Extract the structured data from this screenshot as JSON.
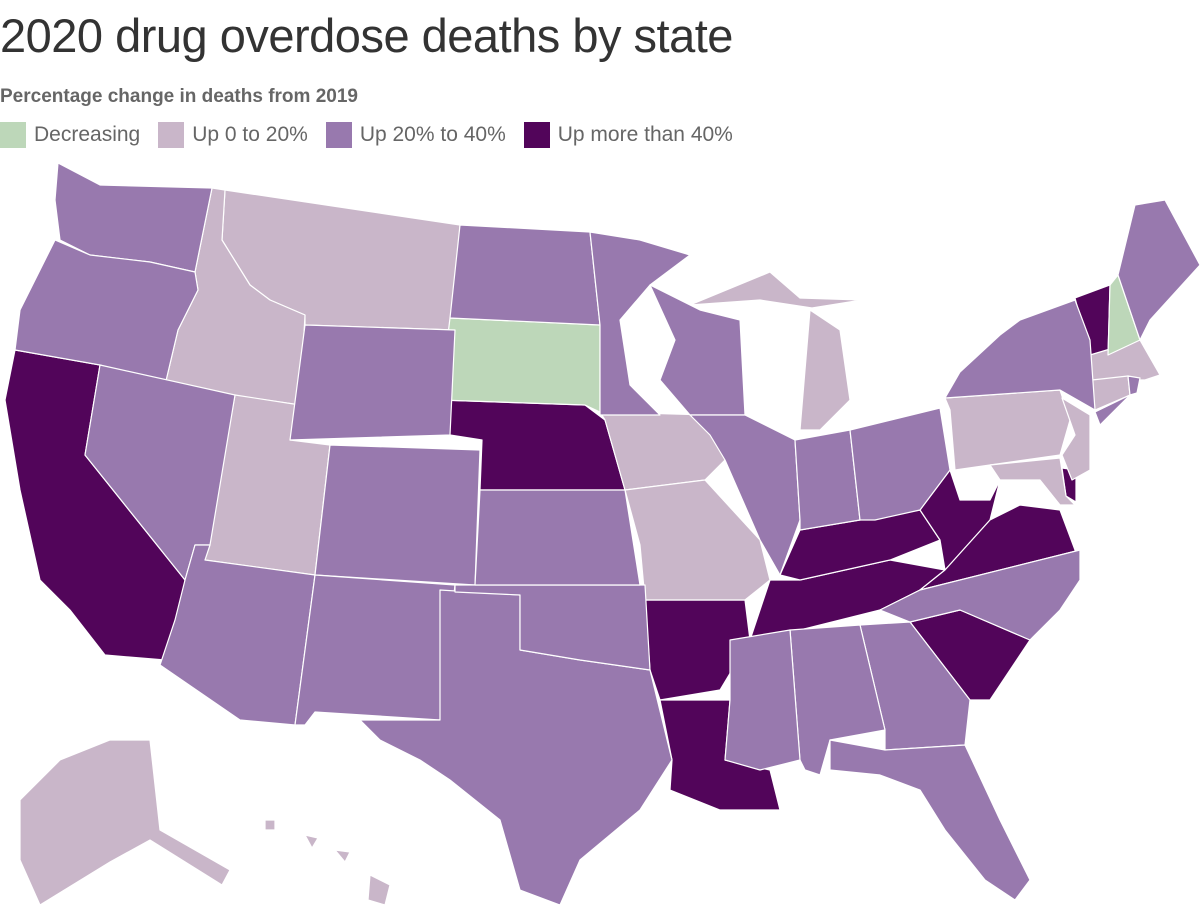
{
  "title": "2020 drug overdose deaths by state",
  "subtitle": "Percentage change in deaths from 2019",
  "legend": [
    {
      "key": "decreasing",
      "label": "Decreasing",
      "color": "#bdd7b9"
    },
    {
      "key": "up0to20",
      "label": "Up 0 to 20%",
      "color": "#c9b6c9"
    },
    {
      "key": "up20to40",
      "label": "Up 20% to 40%",
      "color": "#9879ae"
    },
    {
      "key": "up40plus",
      "label": "Up more than 40%",
      "color": "#52055a"
    }
  ],
  "states": {
    "CA": "up40plus",
    "NE": "up40plus",
    "AR": "up40plus",
    "LA": "up40plus",
    "TN": "up40plus",
    "KY": "up40plus",
    "WV": "up40plus",
    "VA": "up40plus",
    "SC": "up40plus",
    "VT": "up40plus",
    "DE": "up40plus",
    "MT": "up0to20",
    "ID": "up0to20",
    "UT": "up0to20",
    "IA": "up0to20",
    "MO": "up0to20",
    "MI": "up0to20",
    "PA": "up0to20",
    "NJ": "up0to20",
    "MD": "up0to20",
    "MA": "up0to20",
    "CT": "up0to20",
    "AK": "up0to20",
    "HI": "up0to20",
    "SD": "decreasing",
    "NH": "decreasing",
    "WA": "up20to40",
    "OR": "up20to40",
    "NV": "up20to40",
    "AZ": "up20to40",
    "WY": "up20to40",
    "CO": "up20to40",
    "NM": "up20to40",
    "TX": "up20to40",
    "OK": "up20to40",
    "KS": "up20to40",
    "ND": "up20to40",
    "MN": "up20to40",
    "WI": "up20to40",
    "IL": "up20to40",
    "IN": "up20to40",
    "OH": "up20to40",
    "NY": "up20to40",
    "ME": "up20to40",
    "RI": "up20to40",
    "NC": "up20to40",
    "GA": "up20to40",
    "AL": "up20to40",
    "MS": "up20to40",
    "FL": "up20to40"
  }
}
